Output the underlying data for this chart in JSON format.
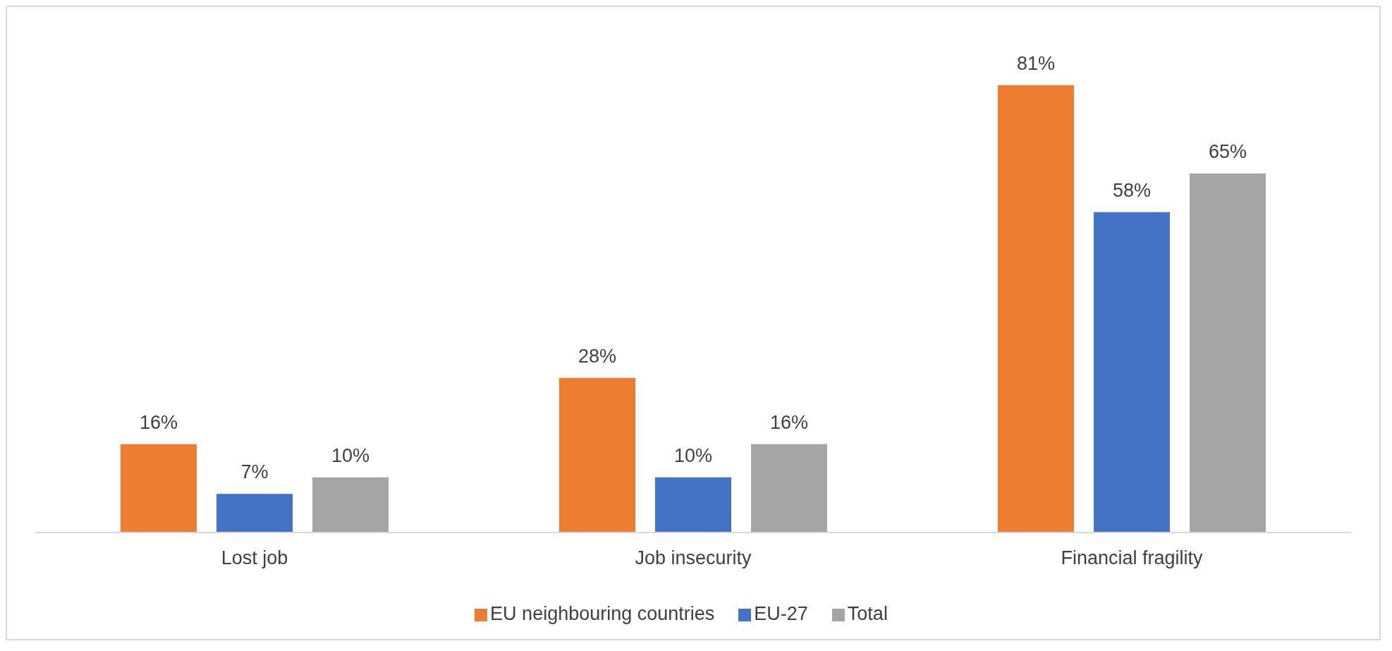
{
  "chart_data": {
    "type": "bar",
    "categories": [
      "Lost job",
      "Job insecurity",
      "Financial fragility"
    ],
    "series": [
      {
        "name": "EU neighbouring countries",
        "color": "#ed7d31",
        "values": [
          16,
          28,
          81
        ],
        "value_labels": [
          "16%",
          "28%",
          "81%"
        ]
      },
      {
        "name": "EU-27",
        "color": "#4472c4",
        "values": [
          7,
          10,
          58
        ],
        "value_labels": [
          "7%",
          "10%",
          "58%"
        ]
      },
      {
        "name": "Total",
        "color": "#a5a5a5",
        "values": [
          10,
          16,
          65
        ],
        "value_labels": [
          "10%",
          "16%",
          "65%"
        ]
      }
    ],
    "grid": false,
    "legend": "bottom"
  }
}
